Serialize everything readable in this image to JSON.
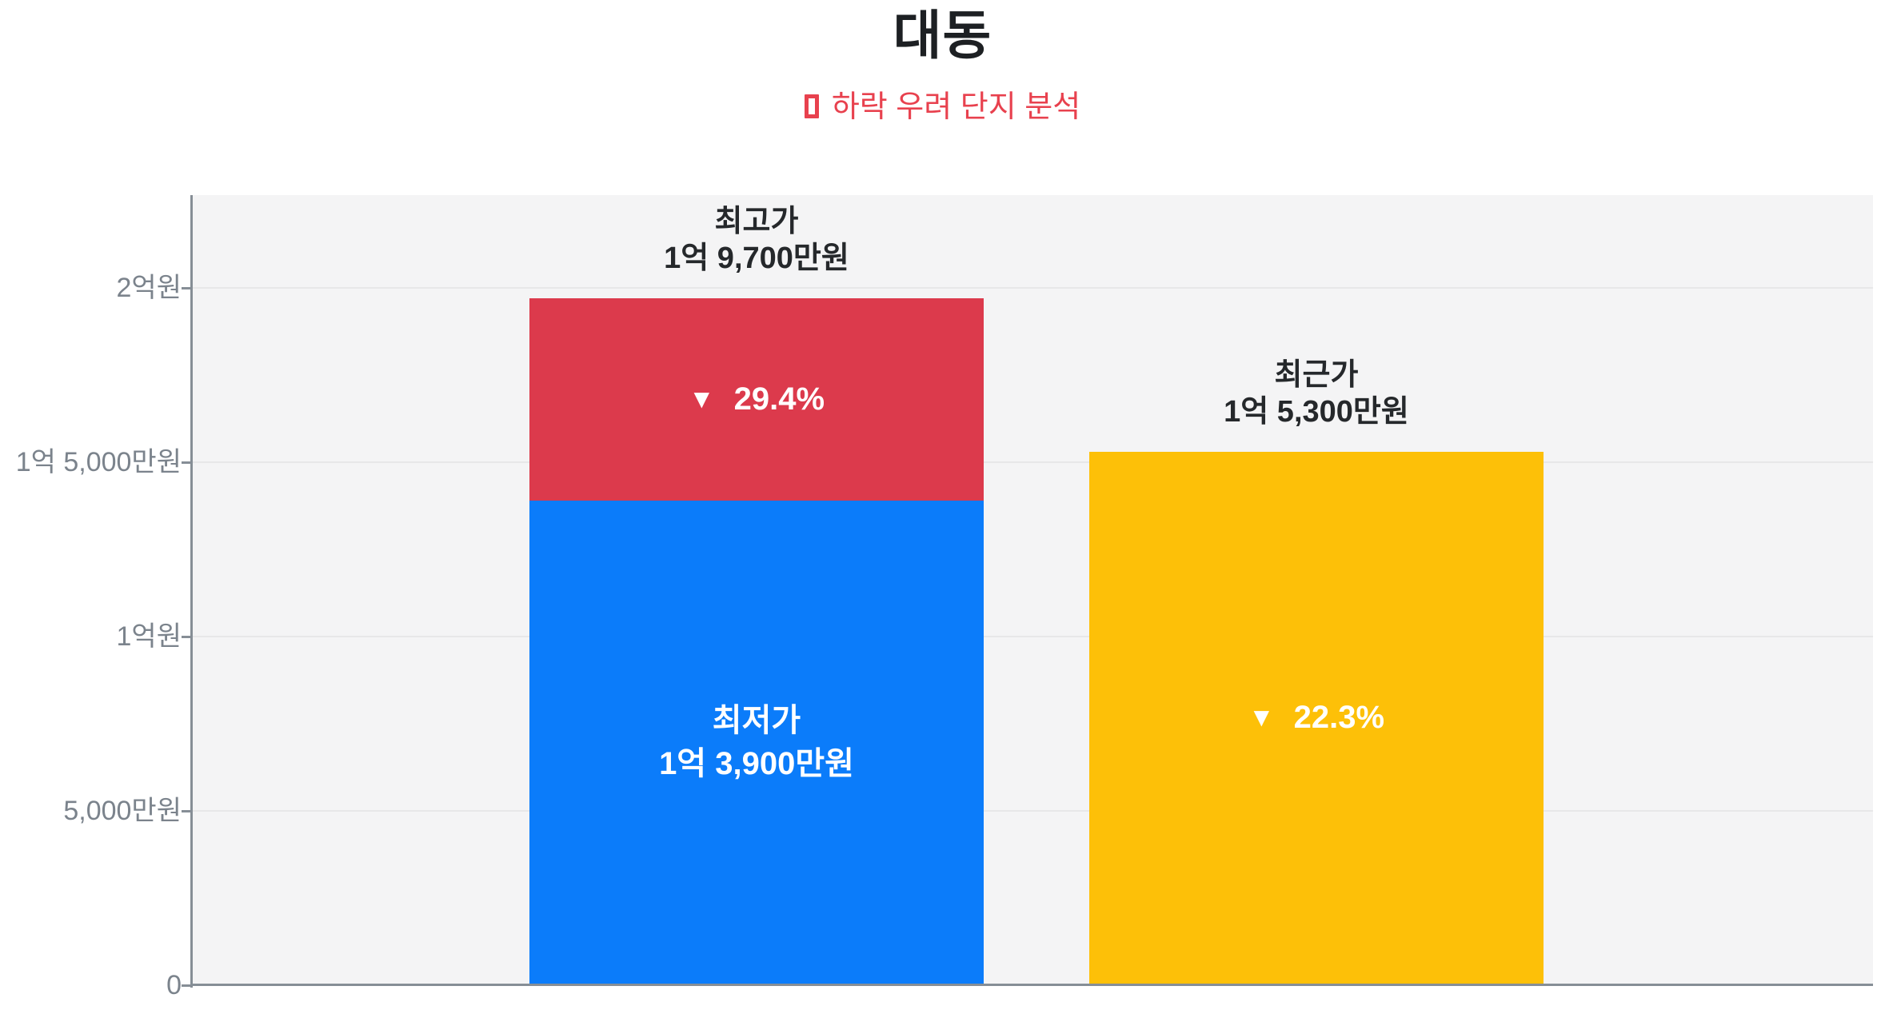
{
  "page": {
    "title": "대동",
    "subtitle_marker": "□",
    "subtitle": "하락 우려 단지 분석"
  },
  "chart_data": {
    "type": "bar",
    "title": "대동",
    "subtitle": "□ 하락 우려 단지 분석",
    "value_unit": "만원",
    "ylim": [
      0,
      22660
    ],
    "grid": true,
    "plot_background": "#f4f4f5",
    "yticks": [
      {
        "value": 20000,
        "label": "2억원"
      },
      {
        "value": 15000,
        "label": "1억 5,000만원"
      },
      {
        "value": 10000,
        "label": "1억원"
      },
      {
        "value": 5000,
        "label": "5,000만원"
      },
      {
        "value": 0,
        "label": "0"
      }
    ],
    "bars": [
      {
        "id": "price-range-bar",
        "top_label_lines": [
          "최고가",
          "1억 9,700만원"
        ],
        "total_value": 19700,
        "segments": [
          {
            "value": 13900,
            "color": "#0b7cfa",
            "label_lines": [
              "최저가",
              "1억 3,900만원"
            ]
          },
          {
            "value": 5800,
            "color": "#dc3a4c",
            "arrow": "▼",
            "drop_text": "29.4%"
          }
        ]
      },
      {
        "id": "recent-price-bar",
        "top_label_lines": [
          "최근가",
          "1억 5,300만원"
        ],
        "total_value": 15300,
        "segments": [
          {
            "value": 15300,
            "color": "#fdc008",
            "arrow": "▼",
            "drop_text": "22.3%"
          }
        ]
      }
    ],
    "colors": {
      "blue": "#0b7cfa",
      "red": "#dc3a4c",
      "yellow": "#fdc008",
      "axis": "#868e96",
      "gridline": "#e7e7e8",
      "tick_label": "#7b838c",
      "title_text": "#1d2023",
      "subtitle_text": "#e8414e"
    }
  }
}
